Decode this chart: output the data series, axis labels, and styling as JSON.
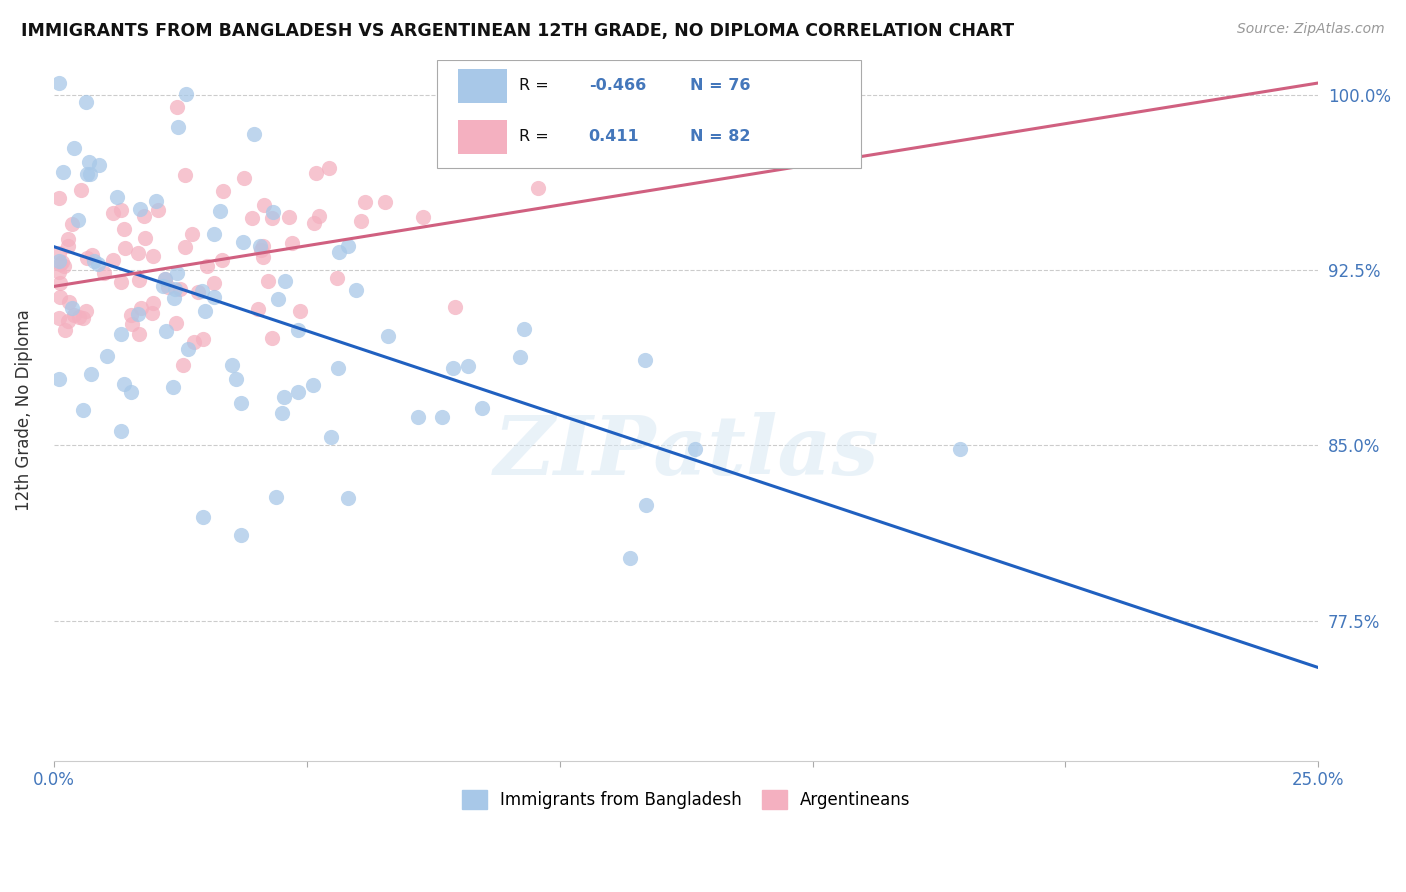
{
  "title": "IMMIGRANTS FROM BANGLADESH VS ARGENTINEAN 12TH GRADE, NO DIPLOMA CORRELATION CHART",
  "source": "Source: ZipAtlas.com",
  "ylabel": "12th Grade, No Diploma",
  "xlim": [
    0.0,
    0.25
  ],
  "ylim": [
    0.715,
    1.015
  ],
  "ytick_positions": [
    0.775,
    0.85,
    0.925,
    1.0
  ],
  "ytick_labels": [
    "77.5%",
    "85.0%",
    "92.5%",
    "100.0%"
  ],
  "xtick_positions": [
    0.0,
    0.05,
    0.1,
    0.15,
    0.2,
    0.25
  ],
  "xtick_labels": [
    "0.0%",
    "",
    "",
    "",
    "",
    "25.0%"
  ],
  "r_blue": -0.466,
  "n_blue": 76,
  "r_pink": 0.411,
  "n_pink": 82,
  "color_blue": "#a8c8e8",
  "color_pink": "#f4b0c0",
  "line_blue": "#2060c0",
  "line_pink": "#d06080",
  "legend_label_blue": "Immigrants from Bangladesh",
  "legend_label_pink": "Argentineans",
  "watermark": "ZIPatlas",
  "blue_line_x0": 0.0,
  "blue_line_y0": 0.935,
  "blue_line_x1": 0.25,
  "blue_line_y1": 0.755,
  "pink_line_x0": 0.0,
  "pink_line_y0": 0.918,
  "pink_line_x1": 0.25,
  "pink_line_y1": 1.005
}
